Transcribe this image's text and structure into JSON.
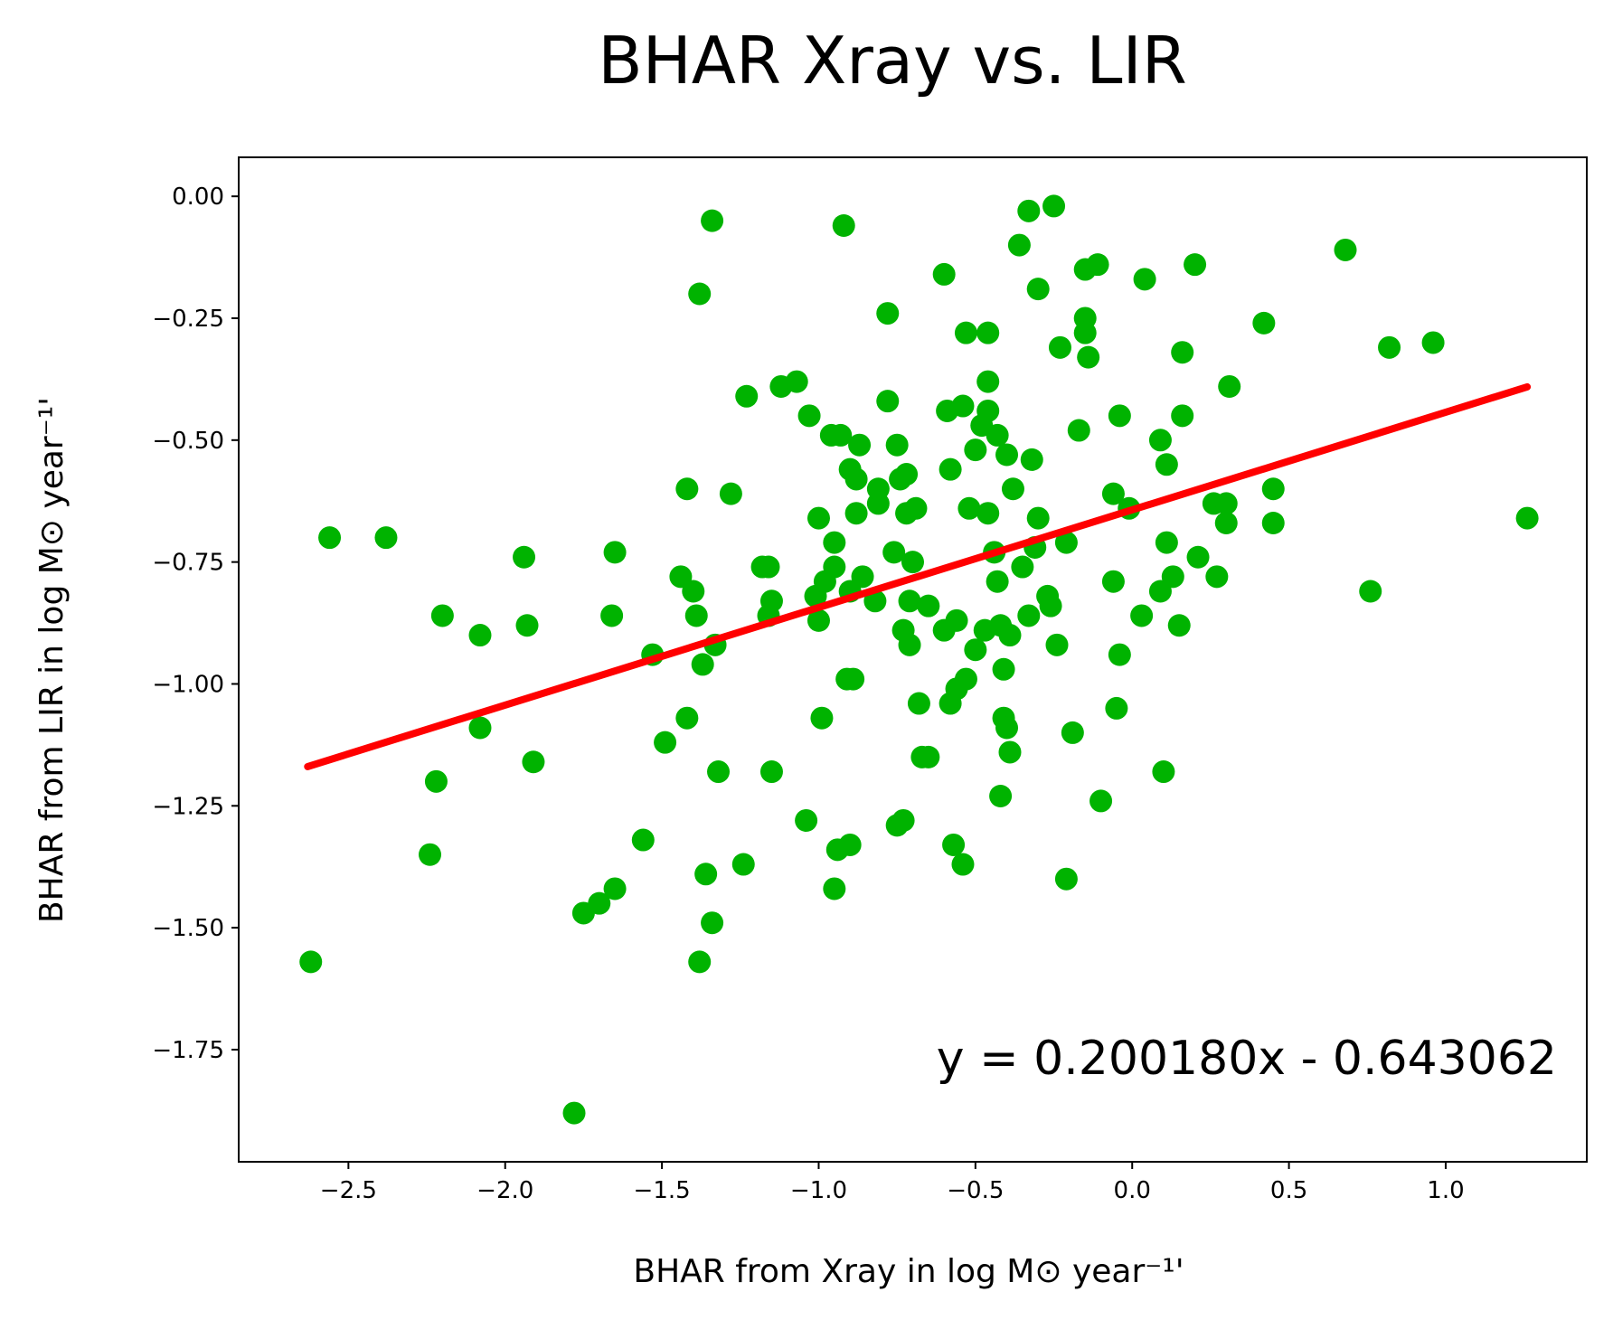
{
  "chart_data": {
    "type": "scatter",
    "title": "BHAR Xray vs. LIR",
    "xlabel": "BHAR from Xray in log M⊙ year⁻¹'",
    "ylabel": "BHAR from LIR in log M⊙ year⁻¹'",
    "xlim": [
      -2.85,
      1.45
    ],
    "ylim": [
      -1.98,
      0.08
    ],
    "x_ticks": [
      -2.5,
      -2.0,
      -1.5,
      -1.0,
      -0.5,
      0.0,
      0.5,
      1.0
    ],
    "x_tick_labels": [
      "−2.5",
      "−2.0",
      "−1.5",
      "−1.0",
      "−0.5",
      "0.0",
      "0.5",
      "1.0"
    ],
    "y_ticks": [
      0.0,
      -0.25,
      -0.5,
      -0.75,
      -1.0,
      -1.25,
      -1.5,
      -1.75
    ],
    "y_tick_labels": [
      "0.00",
      "−0.25",
      "−0.50",
      "−0.75",
      "−1.00",
      "−1.25",
      "−1.50",
      "−1.75"
    ],
    "grid": false,
    "colors": {
      "points": "#00b300",
      "fit": "#ff0000"
    },
    "annotation": "y = 0.200180x - 0.643062",
    "fit": {
      "slope": 0.20018,
      "intercept": -0.643062,
      "x_range": [
        -2.63,
        1.26
      ]
    },
    "points": [
      [
        -2.62,
        -1.57
      ],
      [
        -2.56,
        -0.7
      ],
      [
        -2.38,
        -0.7
      ],
      [
        -2.24,
        -1.35
      ],
      [
        -2.22,
        -1.2
      ],
      [
        -2.2,
        -0.86
      ],
      [
        -2.08,
        -0.9
      ],
      [
        -2.08,
        -1.09
      ],
      [
        -1.94,
        -0.74
      ],
      [
        -1.93,
        -0.88
      ],
      [
        -1.91,
        -1.16
      ],
      [
        -1.78,
        -1.88
      ],
      [
        -1.75,
        -1.47
      ],
      [
        -1.7,
        -1.45
      ],
      [
        -1.66,
        -0.86
      ],
      [
        -1.65,
        -0.73
      ],
      [
        -1.65,
        -1.42
      ],
      [
        -1.56,
        -1.32
      ],
      [
        -1.53,
        -0.94
      ],
      [
        -1.49,
        -1.12
      ],
      [
        -1.44,
        -0.78
      ],
      [
        -1.42,
        -0.6
      ],
      [
        -1.42,
        -1.07
      ],
      [
        -1.4,
        -0.81
      ],
      [
        -1.39,
        -0.86
      ],
      [
        -1.38,
        -0.2
      ],
      [
        -1.38,
        -1.57
      ],
      [
        -1.37,
        -0.96
      ],
      [
        -1.36,
        -1.39
      ],
      [
        -1.34,
        -0.05
      ],
      [
        -1.34,
        -1.49
      ],
      [
        -1.33,
        -0.92
      ],
      [
        -1.32,
        -1.18
      ],
      [
        -1.28,
        -0.61
      ],
      [
        -1.24,
        -1.37
      ],
      [
        -1.23,
        -0.41
      ],
      [
        -1.18,
        -0.76
      ],
      [
        -1.16,
        -0.76
      ],
      [
        -1.16,
        -0.86
      ],
      [
        -1.15,
        -0.83
      ],
      [
        -1.15,
        -1.18
      ],
      [
        -1.12,
        -0.39
      ],
      [
        -1.07,
        -0.38
      ],
      [
        -1.04,
        -1.28
      ],
      [
        -1.03,
        -0.45
      ],
      [
        -1.01,
        -0.82
      ],
      [
        -1.0,
        -0.87
      ],
      [
        -1.0,
        -0.66
      ],
      [
        -0.99,
        -1.07
      ],
      [
        -0.98,
        -0.79
      ],
      [
        -0.96,
        -0.49
      ],
      [
        -0.95,
        -0.71
      ],
      [
        -0.95,
        -0.76
      ],
      [
        -0.95,
        -1.42
      ],
      [
        -0.94,
        -1.34
      ],
      [
        -0.93,
        -0.49
      ],
      [
        -0.92,
        -0.06
      ],
      [
        -0.91,
        -0.99
      ],
      [
        -0.9,
        -1.33
      ],
      [
        -0.9,
        -0.56
      ],
      [
        -0.9,
        -0.81
      ],
      [
        -0.89,
        -0.99
      ],
      [
        -0.88,
        -0.58
      ],
      [
        -0.88,
        -0.65
      ],
      [
        -0.87,
        -0.51
      ],
      [
        -0.86,
        -0.78
      ],
      [
        -0.82,
        -0.83
      ],
      [
        -0.81,
        -0.63
      ],
      [
        -0.81,
        -0.6
      ],
      [
        -0.78,
        -0.24
      ],
      [
        -0.78,
        -0.42
      ],
      [
        -0.76,
        -0.73
      ],
      [
        -0.75,
        -0.51
      ],
      [
        -0.75,
        -1.29
      ],
      [
        -0.74,
        -0.58
      ],
      [
        -0.73,
        -1.28
      ],
      [
        -0.73,
        -0.89
      ],
      [
        -0.72,
        -0.57
      ],
      [
        -0.72,
        -0.65
      ],
      [
        -0.71,
        -0.92
      ],
      [
        -0.71,
        -0.83
      ],
      [
        -0.7,
        -0.75
      ],
      [
        -0.69,
        -0.64
      ],
      [
        -0.68,
        -1.04
      ],
      [
        -0.67,
        -1.15
      ],
      [
        -0.65,
        -1.15
      ],
      [
        -0.65,
        -0.84
      ],
      [
        -0.6,
        -0.16
      ],
      [
        -0.6,
        -0.89
      ],
      [
        -0.59,
        -0.44
      ],
      [
        -0.58,
        -0.56
      ],
      [
        -0.58,
        -1.04
      ],
      [
        -0.57,
        -1.33
      ],
      [
        -0.56,
        -0.87
      ],
      [
        -0.56,
        -1.01
      ],
      [
        -0.54,
        -1.37
      ],
      [
        -0.54,
        -0.43
      ],
      [
        -0.53,
        -0.28
      ],
      [
        -0.53,
        -0.99
      ],
      [
        -0.52,
        -0.64
      ],
      [
        -0.5,
        -0.93
      ],
      [
        -0.5,
        -0.52
      ],
      [
        -0.48,
        -0.47
      ],
      [
        -0.47,
        -0.89
      ],
      [
        -0.46,
        -0.44
      ],
      [
        -0.46,
        -0.28
      ],
      [
        -0.46,
        -0.38
      ],
      [
        -0.46,
        -0.65
      ],
      [
        -0.44,
        -0.73
      ],
      [
        -0.43,
        -0.49
      ],
      [
        -0.43,
        -0.79
      ],
      [
        -0.42,
        -0.88
      ],
      [
        -0.42,
        -1.23
      ],
      [
        -0.41,
        -0.97
      ],
      [
        -0.41,
        -1.07
      ],
      [
        -0.4,
        -0.53
      ],
      [
        -0.4,
        -1.09
      ],
      [
        -0.39,
        -0.9
      ],
      [
        -0.39,
        -1.14
      ],
      [
        -0.38,
        -0.6
      ],
      [
        -0.36,
        -0.1
      ],
      [
        -0.35,
        -0.76
      ],
      [
        -0.33,
        -0.03
      ],
      [
        -0.33,
        -0.86
      ],
      [
        -0.32,
        -0.54
      ],
      [
        -0.31,
        -0.72
      ],
      [
        -0.3,
        -0.19
      ],
      [
        -0.3,
        -0.66
      ],
      [
        -0.27,
        -0.82
      ],
      [
        -0.26,
        -0.84
      ],
      [
        -0.25,
        -0.02
      ],
      [
        -0.24,
        -0.92
      ],
      [
        -0.23,
        -0.31
      ],
      [
        -0.21,
        -0.71
      ],
      [
        -0.21,
        -1.4
      ],
      [
        -0.19,
        -1.1
      ],
      [
        -0.17,
        -0.48
      ],
      [
        -0.15,
        -0.25
      ],
      [
        -0.15,
        -0.28
      ],
      [
        -0.15,
        -0.15
      ],
      [
        -0.14,
        -0.33
      ],
      [
        -0.11,
        -0.14
      ],
      [
        -0.1,
        -1.24
      ],
      [
        -0.06,
        -0.61
      ],
      [
        -0.06,
        -0.79
      ],
      [
        -0.05,
        -1.05
      ],
      [
        -0.04,
        -0.45
      ],
      [
        -0.04,
        -0.94
      ],
      [
        -0.01,
        -0.64
      ],
      [
        0.03,
        -0.86
      ],
      [
        0.04,
        -0.17
      ],
      [
        0.09,
        -0.5
      ],
      [
        0.09,
        -0.81
      ],
      [
        0.1,
        -1.18
      ],
      [
        0.11,
        -0.55
      ],
      [
        0.11,
        -0.71
      ],
      [
        0.13,
        -0.78
      ],
      [
        0.15,
        -0.88
      ],
      [
        0.16,
        -0.32
      ],
      [
        0.16,
        -0.45
      ],
      [
        0.2,
        -0.14
      ],
      [
        0.21,
        -0.74
      ],
      [
        0.26,
        -0.63
      ],
      [
        0.27,
        -0.78
      ],
      [
        0.3,
        -0.63
      ],
      [
        0.3,
        -0.67
      ],
      [
        0.31,
        -0.39
      ],
      [
        0.42,
        -0.26
      ],
      [
        0.45,
        -0.6
      ],
      [
        0.45,
        -0.67
      ],
      [
        0.68,
        -0.11
      ],
      [
        0.76,
        -0.81
      ],
      [
        0.82,
        -0.31
      ],
      [
        0.96,
        -0.3
      ],
      [
        1.26,
        -0.66
      ]
    ]
  }
}
